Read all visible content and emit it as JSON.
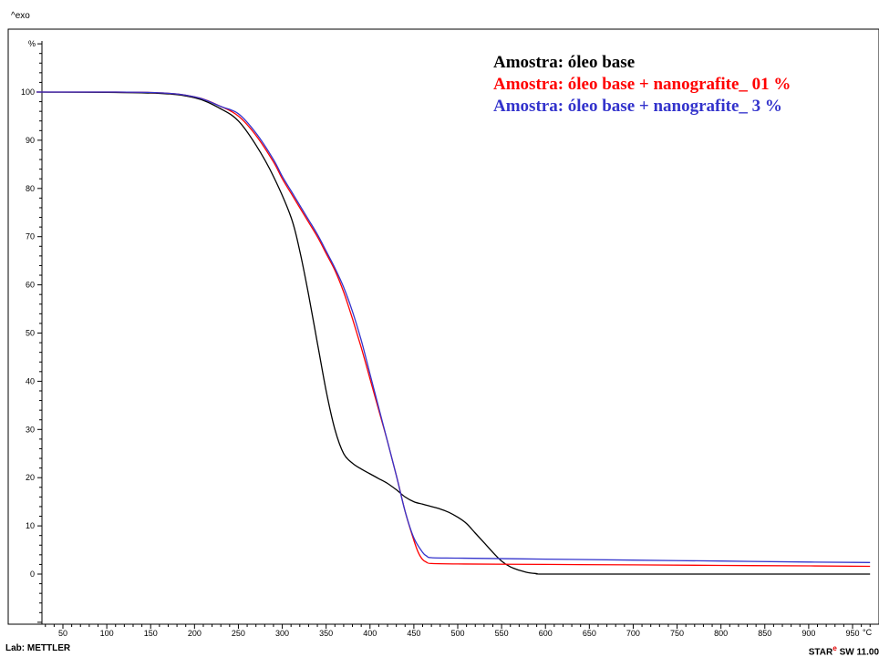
{
  "header": {
    "exo_label": "^exo"
  },
  "footer": {
    "lab_label": "Lab: METTLER",
    "software_label": "SW 11.00",
    "software_prefix": "STAR",
    "software_sup": "e"
  },
  "chart_data": {
    "type": "line",
    "title": "",
    "xlabel": "",
    "ylabel": "",
    "x_unit": "°C",
    "y_unit": "%",
    "xlim": [
      20,
      970
    ],
    "ylim": [
      -12,
      112
    ],
    "x_ticks": [
      50,
      100,
      150,
      200,
      250,
      300,
      350,
      400,
      450,
      500,
      550,
      600,
      650,
      700,
      750,
      800,
      850,
      900,
      950
    ],
    "y_ticks": [
      0,
      10,
      20,
      30,
      40,
      50,
      60,
      70,
      80,
      90,
      100
    ],
    "grid": false,
    "legend_position": "top-right",
    "series": [
      {
        "name": "Amostra: óleo base",
        "color": "#000000",
        "points": [
          [
            20,
            100
          ],
          [
            150,
            99.8
          ],
          [
            200,
            98.8
          ],
          [
            230,
            96.5
          ],
          [
            250,
            94
          ],
          [
            270,
            89
          ],
          [
            290,
            82.5
          ],
          [
            310,
            74
          ],
          [
            320,
            67
          ],
          [
            330,
            58
          ],
          [
            340,
            48
          ],
          [
            350,
            38
          ],
          [
            360,
            30
          ],
          [
            370,
            25
          ],
          [
            380,
            23
          ],
          [
            390,
            21.8
          ],
          [
            400,
            20.8
          ],
          [
            410,
            19.8
          ],
          [
            420,
            18.8
          ],
          [
            430,
            17.5
          ],
          [
            440,
            16
          ],
          [
            450,
            15
          ],
          [
            460,
            14.5
          ],
          [
            470,
            14
          ],
          [
            480,
            13.5
          ],
          [
            490,
            12.8
          ],
          [
            500,
            11.8
          ],
          [
            510,
            10.5
          ],
          [
            520,
            8.5
          ],
          [
            530,
            6.5
          ],
          [
            540,
            4.5
          ],
          [
            550,
            2.7
          ],
          [
            560,
            1.5
          ],
          [
            570,
            0.8
          ],
          [
            580,
            0.3
          ],
          [
            590,
            0.1
          ],
          [
            600,
            0
          ],
          [
            700,
            0
          ],
          [
            800,
            0
          ],
          [
            970,
            0
          ]
        ]
      },
      {
        "name": "Amostra: óleo base + nanografite_ 01 %",
        "color": "#ff0000",
        "points": [
          [
            20,
            100
          ],
          [
            150,
            99.9
          ],
          [
            200,
            99
          ],
          [
            230,
            97
          ],
          [
            250,
            95
          ],
          [
            270,
            91
          ],
          [
            290,
            85.5
          ],
          [
            300,
            82
          ],
          [
            310,
            79
          ],
          [
            320,
            76
          ],
          [
            330,
            73
          ],
          [
            340,
            70
          ],
          [
            350,
            66.5
          ],
          [
            360,
            63
          ],
          [
            370,
            58.5
          ],
          [
            380,
            53
          ],
          [
            390,
            47
          ],
          [
            400,
            40.5
          ],
          [
            410,
            34
          ],
          [
            420,
            27.5
          ],
          [
            430,
            20.5
          ],
          [
            440,
            13
          ],
          [
            450,
            7
          ],
          [
            455,
            4.5
          ],
          [
            460,
            3
          ],
          [
            465,
            2.4
          ],
          [
            470,
            2.2
          ],
          [
            500,
            2.1
          ],
          [
            600,
            2
          ],
          [
            700,
            1.9
          ],
          [
            800,
            1.8
          ],
          [
            900,
            1.7
          ],
          [
            970,
            1.6
          ]
        ]
      },
      {
        "name": "Amostra: óleo base + nanografite_ 3 %",
        "color": "#3333cc",
        "points": [
          [
            20,
            100
          ],
          [
            150,
            99.9
          ],
          [
            200,
            99
          ],
          [
            230,
            97
          ],
          [
            250,
            95.5
          ],
          [
            270,
            91.5
          ],
          [
            290,
            86
          ],
          [
            300,
            82.5
          ],
          [
            310,
            79.5
          ],
          [
            320,
            76.5
          ],
          [
            330,
            73.5
          ],
          [
            340,
            70.5
          ],
          [
            350,
            67
          ],
          [
            360,
            63.5
          ],
          [
            370,
            59.5
          ],
          [
            380,
            54.5
          ],
          [
            390,
            48.5
          ],
          [
            400,
            41.5
          ],
          [
            410,
            34.5
          ],
          [
            420,
            27.5
          ],
          [
            430,
            20.5
          ],
          [
            440,
            13
          ],
          [
            450,
            7.5
          ],
          [
            460,
            4.5
          ],
          [
            465,
            3.7
          ],
          [
            470,
            3.4
          ],
          [
            500,
            3.3
          ],
          [
            600,
            3.1
          ],
          [
            700,
            2.9
          ],
          [
            800,
            2.7
          ],
          [
            900,
            2.5
          ],
          [
            970,
            2.4
          ]
        ]
      }
    ]
  }
}
